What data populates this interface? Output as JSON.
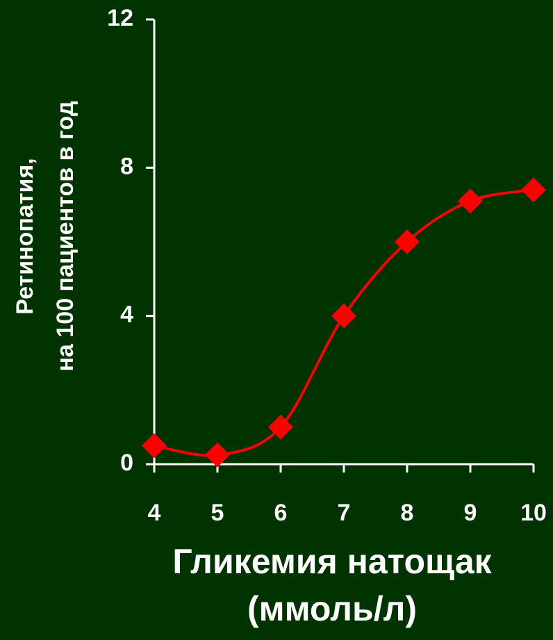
{
  "chart_data": {
    "type": "line",
    "x_label": [
      "Гликемия натощак",
      "(ммоль/л)"
    ],
    "y_label": [
      "Ретинопатия,",
      "на 100 пациентов в год"
    ],
    "x": [
      4,
      5,
      6,
      7,
      8,
      9,
      10
    ],
    "series": [
      {
        "color": "#ff0000",
        "values": [
          0.5,
          0.25,
          1,
          4,
          6,
          7.1,
          7.4
        ]
      }
    ],
    "xlim": [
      4,
      10
    ],
    "xticks": [
      4,
      5,
      6,
      7,
      8,
      9,
      10
    ],
    "ylim": [
      0,
      12
    ],
    "yticks": [
      0,
      4,
      8,
      12
    ],
    "background": "#003300",
    "axis_color": "#ffffff"
  }
}
